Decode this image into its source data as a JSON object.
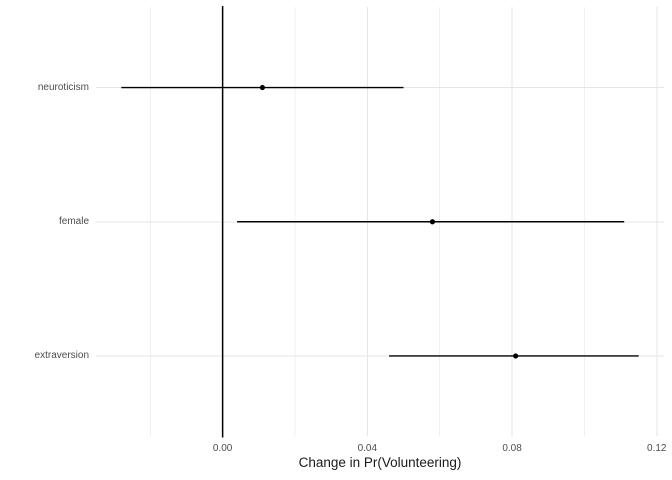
{
  "chart_data": {
    "type": "scatter",
    "subtype": "dot-and-whisker coefficient plot with horizontal confidence intervals",
    "title": "",
    "xlabel": "Change in Pr(Volunteering)",
    "ylabel": "",
    "xlim": [
      -0.035,
      0.122
    ],
    "xticks": [
      0,
      0.04,
      0.08,
      0.12
    ],
    "xticklabels": [
      "0.00",
      "0.04",
      "0.08",
      "0.12"
    ],
    "minor_xticks": [
      -0.02,
      0.02,
      0.06,
      0.1
    ],
    "grid": "vertical major + minor gridlines and one horizontal gridline per category, light gray on white",
    "legend": false,
    "reference_line_x": 0,
    "categories": [
      "neuroticism",
      "female",
      "extraversion"
    ],
    "series": [
      {
        "label": "neuroticism",
        "estimate": 0.011,
        "ci_low": -0.028,
        "ci_high": 0.05
      },
      {
        "label": "female",
        "estimate": 0.058,
        "ci_low": 0.004,
        "ci_high": 0.111
      },
      {
        "label": "extraversion",
        "estimate": 0.081,
        "ci_low": 0.046,
        "ci_high": 0.115
      }
    ],
    "colors": {
      "background": "#ffffff",
      "grid_major": "#e6e6e6",
      "grid_minor": "#f0f0f0",
      "reference_line": "#000000",
      "point_and_ci": "#000000",
      "axis_text": "#4d4d4d",
      "axis_title": "#1a1a1a"
    }
  }
}
